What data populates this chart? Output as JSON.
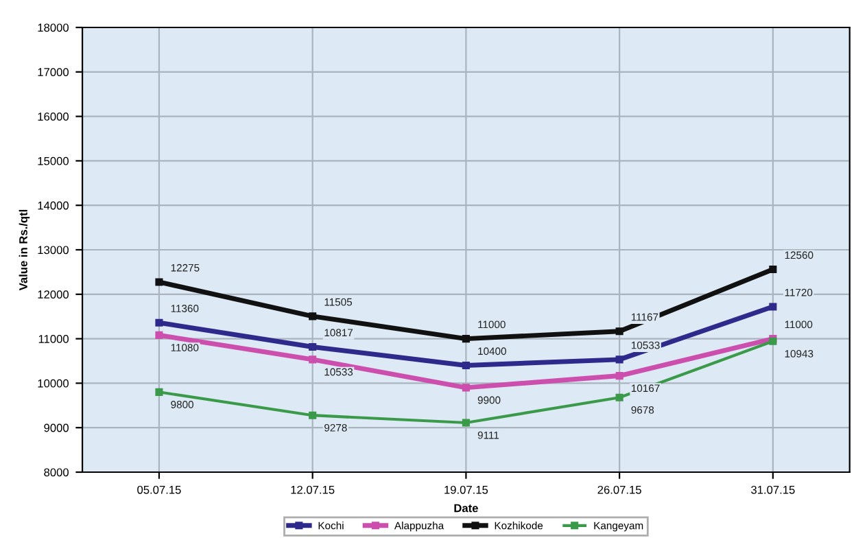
{
  "chart_data": {
    "type": "line",
    "xlabel": "Date",
    "ylabel": "Value in Rs./qtl",
    "categories": [
      "05.07.15",
      "12.07.15",
      "19.07.15",
      "26.07.15",
      "31.07.15"
    ],
    "series": [
      {
        "name": "Kochi",
        "color": "#2e2a8c",
        "values": [
          11360,
          10817,
          10400,
          10533,
          11720
        ]
      },
      {
        "name": "Alappuzha",
        "color": "#cc4fae",
        "values": [
          11080,
          10533,
          9900,
          10167,
          11000
        ]
      },
      {
        "name": "Kozhikode",
        "color": "#111111",
        "values": [
          12275,
          11505,
          11000,
          11167,
          12560
        ]
      },
      {
        "name": "Kangeyam",
        "color": "#3a9a4a",
        "values": [
          9800,
          9278,
          9111,
          9678,
          10943
        ]
      }
    ],
    "ylim": [
      8000,
      18000
    ],
    "yticks": [
      8000,
      9000,
      10000,
      11000,
      12000,
      13000,
      14000,
      15000,
      16000,
      17000,
      18000
    ],
    "grid": true,
    "legend": "bottom",
    "marker": "square",
    "line_style": "solid",
    "data_labels": true
  }
}
